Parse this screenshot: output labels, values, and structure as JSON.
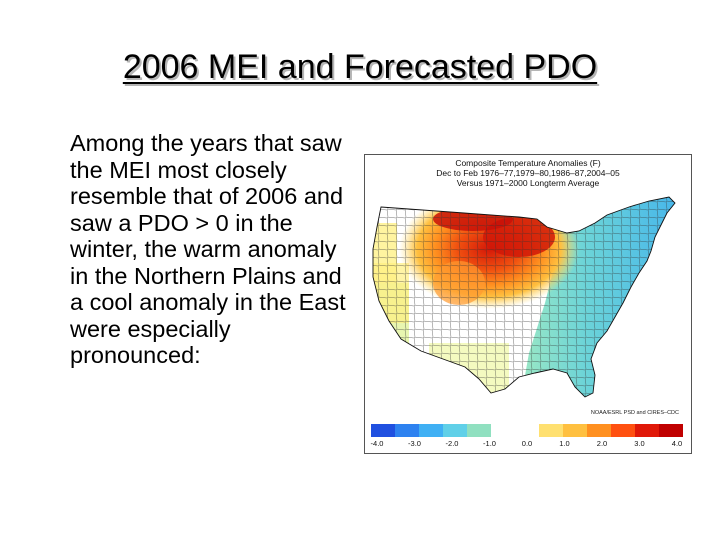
{
  "slide": {
    "title": "2006 MEI and Forecasted PDO",
    "body": "Among the years that saw the MEI most closely resemble that of 2006 and saw a PDO > 0 in the winter, the warm anomaly in the Northern Plains and a cool anomaly in the East were especially pronounced:"
  },
  "map": {
    "title_line1": "Composite Temperature Anomalies (F)",
    "title_line2": "Dec to Feb 1976–77,1979–80,1986–87,2004–05",
    "title_line3": "Versus 1971–2000 Longterm Average",
    "credit": "NOAA/ESRL PSD and CIRES–CDC",
    "colorbar": {
      "colors": [
        "#2050e0",
        "#2e82f0",
        "#40b0f4",
        "#60d0e8",
        "#90e0c0",
        "#ffffff",
        "#ffffff",
        "#ffe070",
        "#ffc040",
        "#ff9020",
        "#ff5010",
        "#e01808",
        "#c00000"
      ],
      "ticks": [
        "-4.0",
        "-3.0",
        "-2.0",
        "-1.0",
        "0.0",
        "1.0",
        "2.0",
        "3.0",
        "4.0"
      ]
    }
  }
}
